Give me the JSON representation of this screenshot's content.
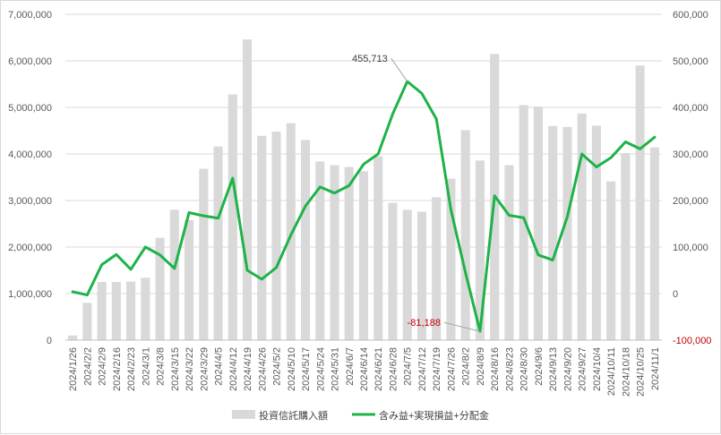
{
  "chart_data": {
    "type": "bar",
    "title": "",
    "x": [
      "2024/1/26",
      "2024/2/2",
      "2024/2/9",
      "2024/2/16",
      "2024/2/23",
      "2024/3/1",
      "2024/3/8",
      "2024/3/15",
      "2024/3/22",
      "2024/3/29",
      "2024/4/5",
      "2024/4/12",
      "2024/4/19",
      "2024/4/26",
      "2024/5/2",
      "2024/5/10",
      "2024/5/17",
      "2024/5/24",
      "2024/5/31",
      "2024/6/7",
      "2024/6/14",
      "2024/6/21",
      "2024/6/28",
      "2024/7/5",
      "2024/7/12",
      "2024/7/19",
      "2024/7/26",
      "2024/8/2",
      "2024/8/9",
      "2024/8/16",
      "2024/8/23",
      "2024/8/30",
      "2024/9/6",
      "2024/9/13",
      "2024/9/20",
      "2024/9/27",
      "2024/10/4",
      "2024/10/11",
      "2024/10/18",
      "2024/10/25",
      "2024/11/1"
    ],
    "series": [
      {
        "name": "投資信託購入額",
        "type": "bar",
        "axis": "left",
        "color": "#d9d9d9",
        "values": [
          100000,
          800000,
          1250000,
          1250000,
          1260000,
          1340000,
          2200000,
          2800000,
          2580000,
          3680000,
          4160000,
          5280000,
          6460000,
          4390000,
          4480000,
          4660000,
          4300000,
          3840000,
          3760000,
          3720000,
          3630000,
          3950000,
          2950000,
          2800000,
          2760000,
          3070000,
          3470000,
          4510000,
          3860000,
          6150000,
          3760000,
          5050000,
          5020000,
          4600000,
          4580000,
          4870000,
          4610000,
          3410000,
          4020000,
          5900000,
          4140000
        ]
      },
      {
        "name": "含み益+実現損益+分配金",
        "type": "line",
        "axis": "right",
        "color": "#1db348",
        "values": [
          4000,
          -3000,
          62000,
          84000,
          52000,
          100000,
          83000,
          54000,
          174000,
          167000,
          162000,
          248000,
          50000,
          31000,
          56000,
          126000,
          188000,
          229000,
          216000,
          232000,
          278000,
          300000,
          386000,
          455713,
          430000,
          375000,
          180000,
          45000,
          -81188,
          210000,
          168000,
          163000,
          83000,
          72000,
          165000,
          300000,
          272000,
          292000,
          326000,
          311000,
          336000
        ]
      }
    ],
    "y_left": {
      "min": 0,
      "max": 7000000,
      "ticks": [
        "0",
        "1,000,000",
        "2,000,000",
        "3,000,000",
        "4,000,000",
        "5,000,000",
        "6,000,000",
        "7,000,000"
      ]
    },
    "y_right": {
      "min": -100000,
      "max": 600000,
      "ticks": [
        "-100,000",
        "0",
        "100,000",
        "200,000",
        "300,000",
        "400,000",
        "500,000",
        "600,000"
      ]
    },
    "annotations": [
      {
        "label": "455,713",
        "series": 1,
        "index": 23,
        "color": "#404040"
      },
      {
        "label": "-81,188",
        "series": 1,
        "index": 28,
        "color": "#c00000"
      }
    ],
    "grid": true,
    "legend_position": "bottom"
  }
}
